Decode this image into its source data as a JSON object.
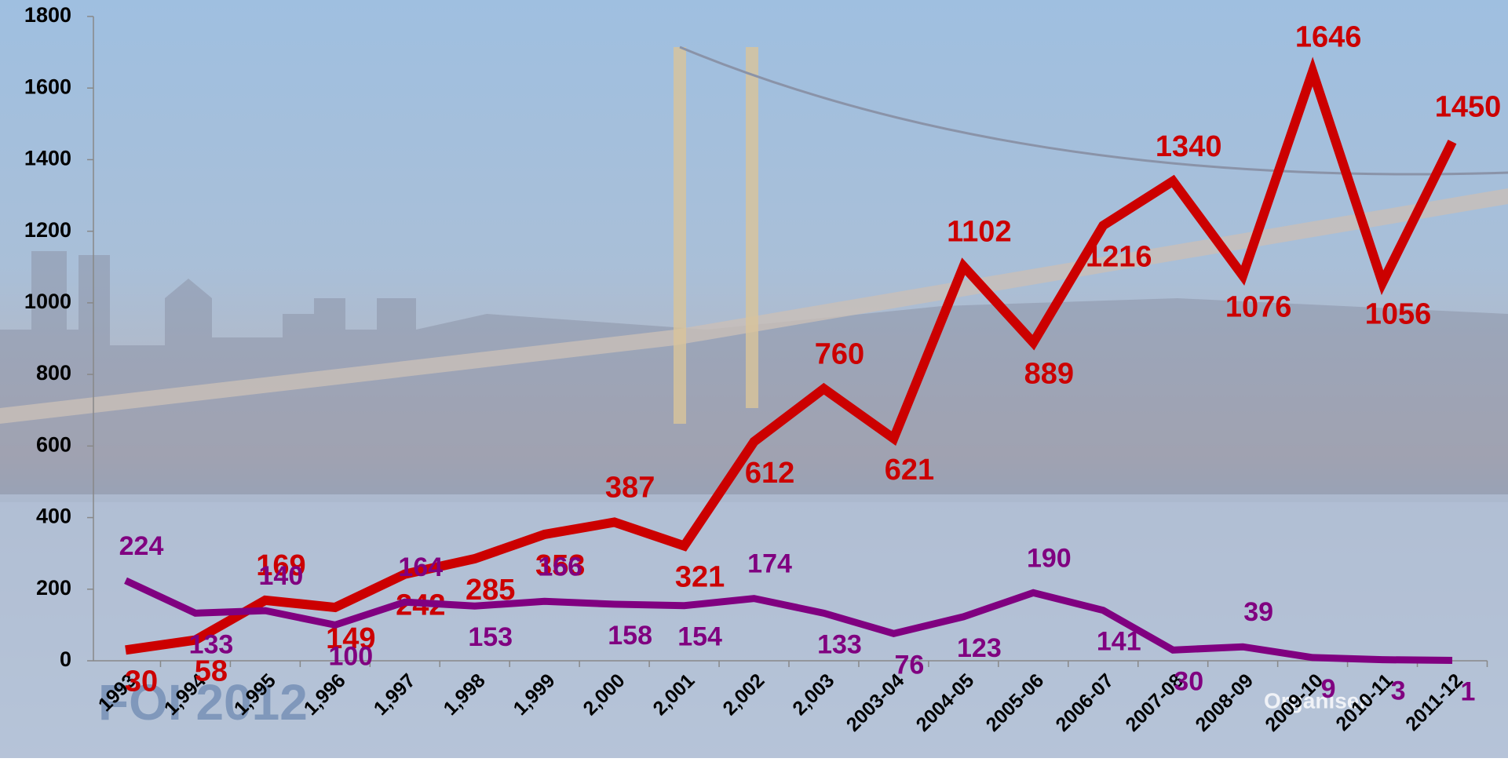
{
  "chart_data": {
    "type": "line",
    "categories": [
      "1993",
      "1,994",
      "1,995",
      "1,996",
      "1,997",
      "1,998",
      "1,999",
      "2,000",
      "2,001",
      "2,002",
      "2,003",
      "2003-04",
      "2004-05",
      "2005-06",
      "2006-07",
      "2007-08",
      "2008-09",
      "2009-10",
      "2010-11",
      "2011-12"
    ],
    "series": [
      {
        "color": "#cc0000",
        "values": [
          30,
          58,
          169,
          149,
          242,
          285,
          353,
          387,
          321,
          612,
          760,
          621,
          1102,
          889,
          1216,
          1340,
          1076,
          1646,
          1056,
          1450
        ]
      },
      {
        "color": "#800080",
        "values": [
          224,
          133,
          140,
          100,
          164,
          153,
          166,
          158,
          154,
          174,
          133,
          76,
          123,
          190,
          141,
          30,
          39,
          9,
          3,
          1
        ]
      }
    ],
    "ylim": [
      0,
      1800
    ],
    "yticks": [
      0,
      200,
      400,
      600,
      800,
      1000,
      1200,
      1400,
      1600,
      1800
    ],
    "annotations": [
      "FOI 2012",
      "Organiser"
    ]
  }
}
